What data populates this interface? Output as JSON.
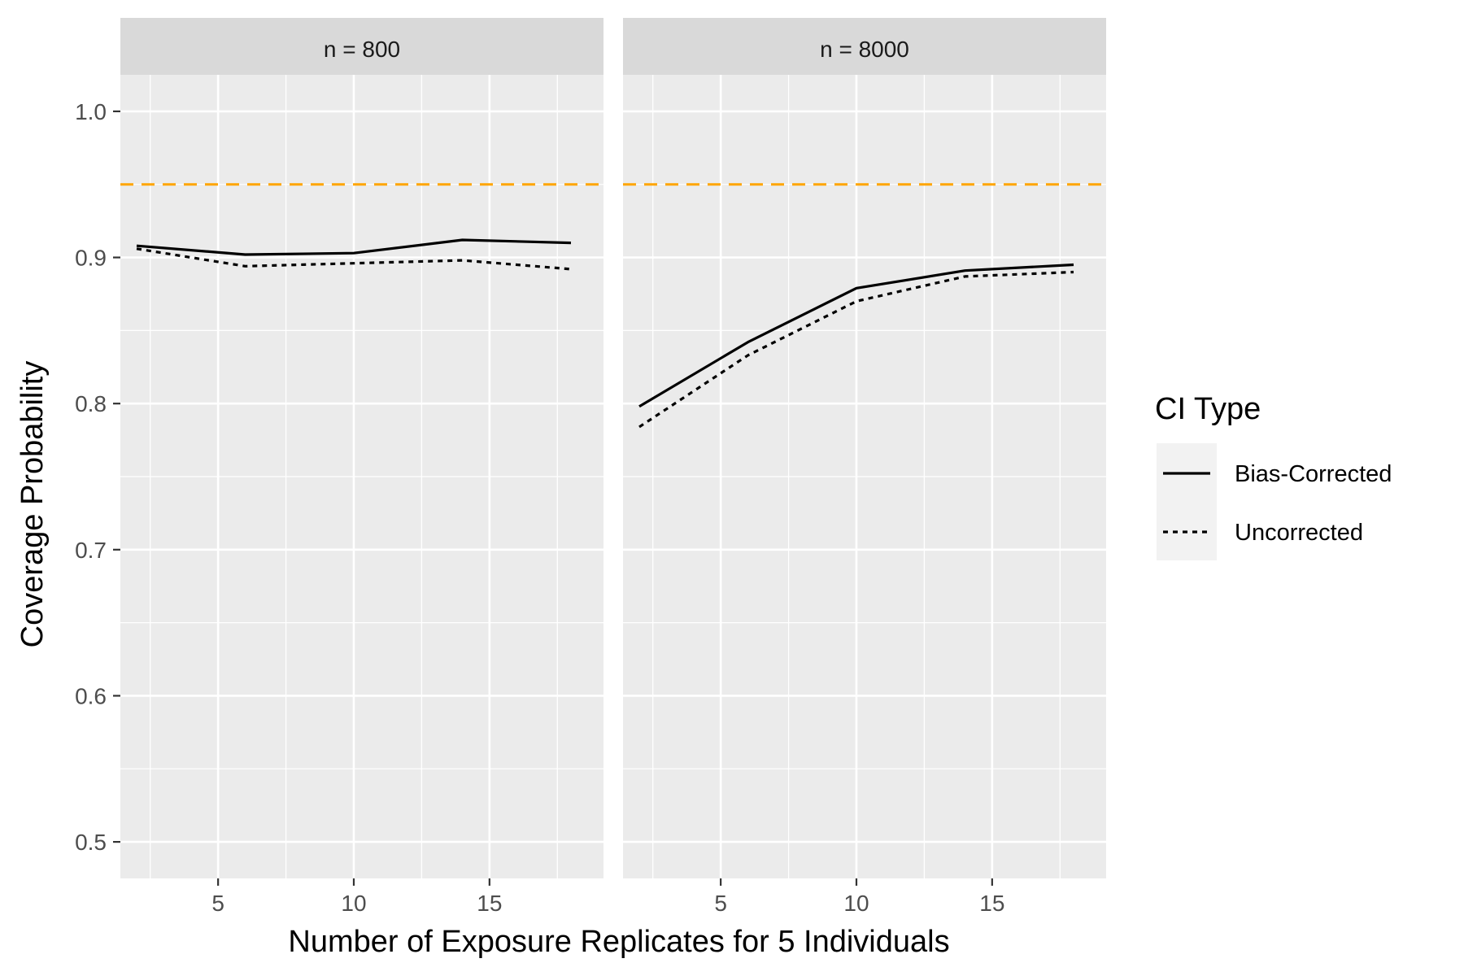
{
  "chart_data": {
    "type": "line",
    "xlabel": "Number of Exposure Replicates for 5 Individuals",
    "ylabel": "Coverage Probability",
    "xlim": [
      1.4,
      19.2
    ],
    "ylim": [
      0.475,
      1.025
    ],
    "x_ticks": [
      5,
      10,
      15
    ],
    "x_tick_labels": [
      "5",
      "10",
      "15"
    ],
    "y_ticks": [
      0.5,
      0.6,
      0.7,
      0.8,
      0.9,
      1.0
    ],
    "y_tick_labels": [
      "0.5",
      "0.6",
      "0.7",
      "0.8",
      "0.9",
      "1.0"
    ],
    "reference_line": {
      "y": 0.95,
      "color": "#FFA500",
      "style": "dashed"
    },
    "grid": true,
    "legend": {
      "title": "CI Type",
      "placement": "right",
      "entries": [
        {
          "name": "Bias-Corrected",
          "style": "solid"
        },
        {
          "name": "Uncorrected",
          "style": "dotted"
        }
      ]
    },
    "panels": [
      {
        "label": "n = 800",
        "series": [
          {
            "name": "Bias-Corrected",
            "style": "solid",
            "x": [
              2,
              6,
              10,
              14,
              18
            ],
            "y": [
              0.908,
              0.902,
              0.903,
              0.912,
              0.91
            ]
          },
          {
            "name": "Uncorrected",
            "style": "dotted",
            "x": [
              2,
              6,
              10,
              14,
              18
            ],
            "y": [
              0.906,
              0.894,
              0.896,
              0.898,
              0.892
            ]
          }
        ]
      },
      {
        "label": "n = 8000",
        "series": [
          {
            "name": "Bias-Corrected",
            "style": "solid",
            "x": [
              2,
              6,
              10,
              14,
              18
            ],
            "y": [
              0.798,
              0.842,
              0.879,
              0.891,
              0.895
            ]
          },
          {
            "name": "Uncorrected",
            "style": "dotted",
            "x": [
              2,
              6,
              10,
              14,
              18
            ],
            "y": [
              0.784,
              0.833,
              0.87,
              0.887,
              0.89
            ]
          }
        ]
      }
    ]
  }
}
